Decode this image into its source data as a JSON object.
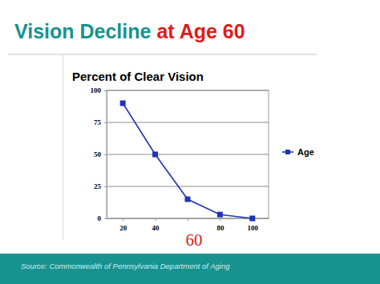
{
  "chart_data": {
    "type": "line",
    "title": "Vision Decline",
    "subtitle": "at Age 60",
    "y_label": "Percent of Clear Vision",
    "annotation": "60",
    "source": "Source: Commonwealth of Pennsylvania Department of Aging",
    "categories": [
      20,
      40,
      null,
      80,
      100
    ],
    "series": [
      {
        "name": "Age",
        "color": "#1f35b8",
        "marker": "square",
        "line_style": "solid",
        "values": [
          90,
          50,
          15,
          3,
          0
        ]
      }
    ],
    "ylim": [
      0,
      100
    ],
    "yticks": [
      0,
      25,
      50,
      75,
      100
    ],
    "grid": true,
    "legend": "right"
  }
}
